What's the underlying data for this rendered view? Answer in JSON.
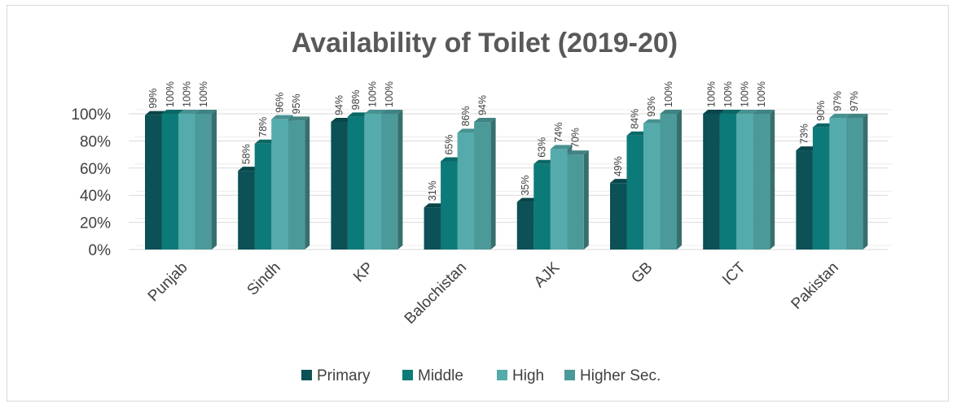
{
  "chart_data": {
    "type": "bar",
    "title": "Availability of Toilet (2019-20)",
    "categories": [
      "Punjab",
      "Sindh",
      "KP",
      "Balochistan",
      "AJK",
      "GB",
      "ICT",
      "Pakistan"
    ],
    "series": [
      {
        "name": "Primary",
        "values": [
          99,
          58,
          94,
          31,
          35,
          49,
          100,
          73
        ],
        "color": "#0b5156"
      },
      {
        "name": "Middle",
        "values": [
          100,
          78,
          98,
          65,
          63,
          84,
          100,
          90
        ],
        "color": "#0c7a78"
      },
      {
        "name": "High",
        "values": [
          100,
          96,
          100,
          86,
          74,
          93,
          100,
          97
        ],
        "color": "#55abab"
      },
      {
        "name": "Higher Sec.",
        "values": [
          100,
          95,
          100,
          94,
          70,
          100,
          100,
          97
        ],
        "color": "#4b9a99"
      }
    ],
    "yticks": [
      "0%",
      "20%",
      "40%",
      "60%",
      "80%",
      "100%"
    ],
    "ylim": [
      0,
      100
    ],
    "value_suffix": "%",
    "grid": true,
    "legend_position": "bottom"
  }
}
